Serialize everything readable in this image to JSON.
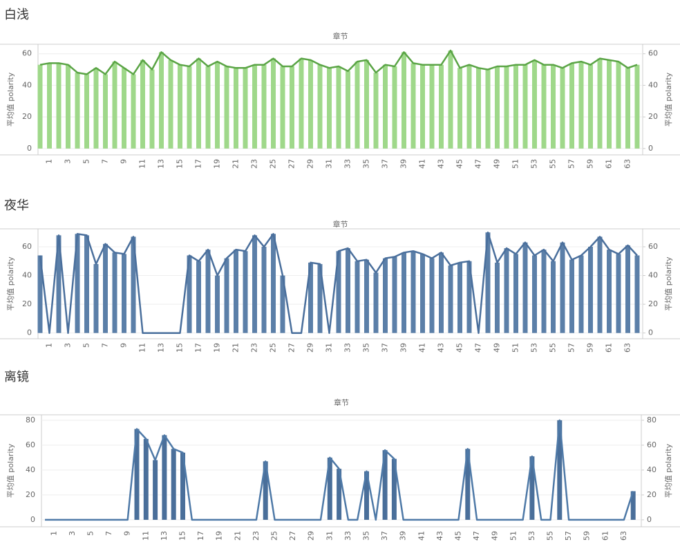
{
  "chart_data": [
    {
      "type": "bar-line",
      "title": "白浅",
      "x_label": "章节",
      "y_label": "平均值 polarity",
      "y2_label": "平均值 polarity",
      "categories": [
        null,
        "1",
        null,
        "3",
        null,
        "5",
        null,
        "7",
        null,
        "9",
        null,
        "11",
        null,
        "13",
        null,
        "15",
        null,
        "17",
        null,
        "19",
        null,
        "21",
        null,
        "23",
        null,
        "25",
        null,
        "27",
        null,
        "29",
        null,
        "31",
        null,
        "33",
        null,
        "35",
        null,
        "37",
        null,
        "39",
        null,
        "41",
        null,
        "43",
        null,
        "45",
        null,
        "47",
        null,
        "49",
        null,
        "51",
        null,
        "53",
        null,
        "55",
        null,
        "57",
        null,
        "59",
        null,
        "61",
        null,
        "63",
        null
      ],
      "values": [
        53,
        54,
        54,
        53,
        48,
        47,
        51,
        47,
        55,
        51,
        47,
        56,
        50,
        61,
        56,
        53,
        52,
        57,
        52,
        55,
        52,
        51,
        51,
        53,
        53,
        57,
        52,
        52,
        57,
        56,
        53,
        51,
        52,
        49,
        55,
        56,
        48,
        53,
        52,
        61,
        54,
        53,
        53,
        53,
        62,
        51,
        53,
        51,
        50,
        52,
        52,
        53,
        53,
        56,
        53,
        53,
        51,
        54,
        55,
        53,
        57,
        56,
        55,
        51,
        53
      ],
      "bar_color": "#9fd88a",
      "line_color": "#5aa445",
      "ylim": [
        -4,
        66
      ],
      "yticks": [
        0,
        20,
        40,
        60
      ],
      "y2lim": [
        -4,
        66
      ],
      "y2ticks": [
        0,
        20,
        40,
        60
      ]
    },
    {
      "type": "bar-line",
      "title": "夜华",
      "x_label": "章节",
      "y_label": "平均值 polarity",
      "y2_label": "平均值 polarity",
      "categories": [
        null,
        "1",
        null,
        "3",
        null,
        "5",
        null,
        "7",
        null,
        "9",
        null,
        "11",
        null,
        "13",
        null,
        "15",
        null,
        "17",
        null,
        "19",
        null,
        "21",
        null,
        "23",
        null,
        "25",
        null,
        "27",
        null,
        "29",
        null,
        "31",
        null,
        "33",
        null,
        "35",
        null,
        "37",
        null,
        "39",
        null,
        "41",
        null,
        "43",
        null,
        "45",
        null,
        "47",
        null,
        "49",
        null,
        "51",
        null,
        "53",
        null,
        "55",
        null,
        "57",
        null,
        "59",
        null,
        "61",
        null,
        "63",
        null
      ],
      "values": [
        54,
        0,
        68,
        0,
        69,
        68,
        48,
        62,
        56,
        55,
        67,
        0,
        0,
        0,
        0,
        0,
        54,
        50,
        58,
        40,
        52,
        58,
        57,
        68,
        60,
        69,
        40,
        0,
        0,
        49,
        48,
        0,
        57,
        59,
        50,
        51,
        42,
        52,
        53,
        56,
        57,
        55,
        52,
        56,
        47,
        49,
        50,
        0,
        70,
        49,
        59,
        55,
        63,
        54,
        58,
        50,
        63,
        51,
        54,
        60,
        67,
        58,
        55,
        61,
        54
      ],
      "bar_color": "#5b7fa8",
      "line_color": "#4a6f9c",
      "ylim": [
        -4,
        72.5
      ],
      "yticks": [
        0,
        20,
        40,
        60
      ],
      "y2lim": [
        -4,
        72.5
      ],
      "y2ticks": [
        0,
        20,
        40,
        60
      ]
    },
    {
      "type": "bar-line",
      "title": "离镜",
      "x_label": "章节",
      "y_label": "平均值 polarity",
      "y2_label": "平均值 polarity",
      "categories": [
        null,
        "1",
        null,
        "3",
        null,
        "5",
        null,
        "7",
        null,
        "9",
        null,
        "11",
        null,
        "13",
        null,
        "15",
        null,
        "17",
        null,
        "19",
        null,
        "21",
        null,
        "23",
        null,
        "25",
        null,
        "27",
        null,
        "29",
        null,
        "31",
        null,
        "33",
        null,
        "35",
        null,
        "37",
        null,
        "39",
        null,
        "41",
        null,
        "43",
        null,
        "45",
        null,
        "47",
        null,
        "49",
        null,
        "51",
        null,
        "53",
        null,
        "55",
        null,
        "57",
        null,
        "59",
        null,
        "61",
        null,
        "63",
        null
      ],
      "values": [
        0,
        0,
        0,
        0,
        0,
        0,
        0,
        0,
        0,
        0,
        73,
        65,
        48,
        68,
        57,
        54,
        0,
        0,
        0,
        0,
        0,
        0,
        0,
        0,
        47,
        0,
        0,
        0,
        0,
        0,
        0,
        50,
        41,
        0,
        0,
        39,
        0,
        56,
        49,
        0,
        0,
        0,
        0,
        0,
        0,
        0,
        57,
        0,
        0,
        0,
        0,
        0,
        0,
        51,
        0,
        0,
        80,
        0,
        0,
        0,
        0,
        0,
        0,
        0,
        23
      ],
      "bar_color": "#4a6f9a",
      "line_color": "#4e79a7",
      "ylim": [
        -5.6,
        84.4
      ],
      "yticks": [
        0,
        20,
        40,
        60,
        80
      ],
      "y2lim": [
        -5.6,
        84.4
      ],
      "y2ticks": [
        0,
        20,
        40,
        60,
        80
      ]
    }
  ]
}
